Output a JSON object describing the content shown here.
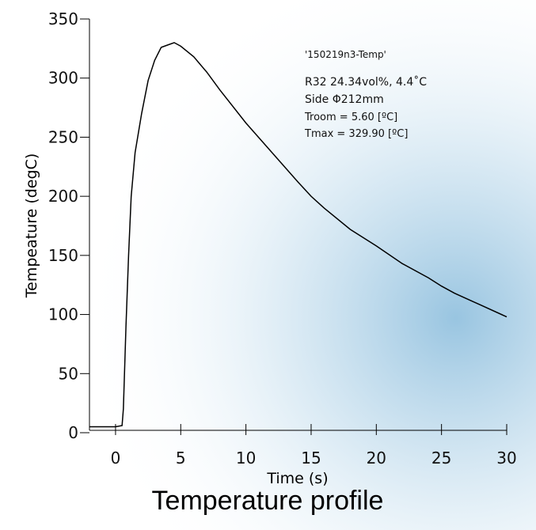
{
  "chart_data": {
    "type": "line",
    "title": "Temperature profile",
    "xlabel": "Time (s)",
    "ylabel": "Tempeature (degC)",
    "annotations": [
      "'150219n3-Temp'",
      "R32 24.34vol%,  4.4˚C",
      "Side Φ212mm",
      "Troom =  5.60 [ºC]",
      "Tmax = 329.90 [ºC]"
    ],
    "x": [
      -2,
      -1,
      0,
      0.5,
      0.6,
      0.8,
      1.0,
      1.2,
      1.5,
      2.0,
      2.5,
      3.0,
      3.5,
      4.0,
      4.5,
      5.0,
      6.0,
      7.0,
      8.0,
      10.0,
      12.0,
      14.0,
      15.0,
      16.0,
      18.0,
      20.0,
      22.0,
      24.0,
      25.0,
      26.0,
      28.0,
      30.0
    ],
    "values": [
      5,
      5,
      5,
      6,
      20,
      90,
      150,
      200,
      237,
      270,
      298,
      315,
      326,
      328,
      330,
      327,
      318,
      305,
      290,
      262,
      237,
      212,
      200,
      190,
      172,
      158,
      143,
      131,
      124,
      118,
      108,
      98
    ],
    "color": "#000000",
    "xlim": [
      -2,
      30
    ],
    "xticks": [
      0,
      5,
      10,
      15,
      20,
      25,
      30
    ],
    "ylim": [
      0,
      350
    ],
    "yticks": [
      0,
      50,
      100,
      150,
      200,
      250,
      300,
      350
    ]
  }
}
